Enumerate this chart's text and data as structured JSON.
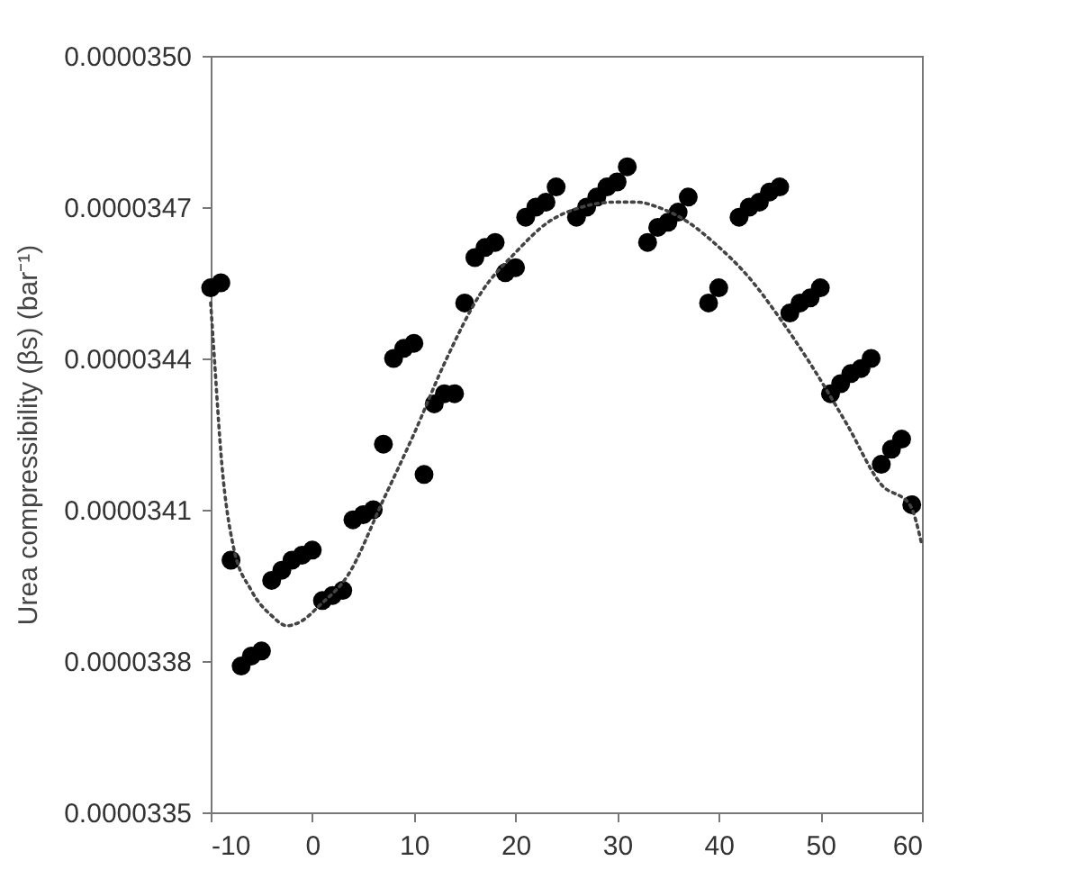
{
  "chart_data": {
    "type": "scatter",
    "ylabel": "Urea compressibility (βs)  (bar⁻¹)",
    "xlim": [
      -10,
      60
    ],
    "xticks": [
      -10,
      0,
      10,
      20,
      30,
      40,
      50,
      60
    ],
    "ylim": [
      3.35e-05,
      3.5e-05
    ],
    "yticks": [
      {
        "value": 3.35e-05,
        "label": "0.0000335"
      },
      {
        "value": 3.38e-05,
        "label": "0.0000338"
      },
      {
        "value": 3.41e-05,
        "label": "0.0000341"
      },
      {
        "value": 3.44e-05,
        "label": "0.0000344"
      },
      {
        "value": 3.47e-05,
        "label": "0.0000347"
      },
      {
        "value": 3.5e-05,
        "label": "0.0000350"
      }
    ],
    "grid": false,
    "series": [
      {
        "color": "#000000",
        "marker": "circle",
        "x": [
          -10,
          -9,
          -8,
          -7,
          -6,
          -5,
          -4,
          -3,
          -2,
          -1,
          0,
          1,
          2,
          3,
          4,
          5,
          6,
          7,
          8,
          9,
          10,
          11,
          12,
          13,
          14,
          15,
          16,
          17,
          18,
          19,
          20,
          21,
          22,
          23,
          24,
          26,
          27,
          28,
          29,
          30,
          31,
          33,
          34,
          35,
          36,
          37,
          39,
          40,
          42,
          43,
          44,
          45,
          46,
          47,
          48,
          49,
          50,
          51,
          52,
          53,
          54,
          55,
          56,
          57,
          58,
          59
        ],
        "values": [
          3.454e-05,
          3.455e-05,
          3.4e-05,
          3.379e-05,
          3.381e-05,
          3.382e-05,
          3.396e-05,
          3.398e-05,
          3.4e-05,
          3.401e-05,
          3.402e-05,
          3.392e-05,
          3.393e-05,
          3.394e-05,
          3.408e-05,
          3.409e-05,
          3.41e-05,
          3.423e-05,
          3.44e-05,
          3.442e-05,
          3.443e-05,
          3.417e-05,
          3.431e-05,
          3.433e-05,
          3.433e-05,
          3.451e-05,
          3.46e-05,
          3.462e-05,
          3.463e-05,
          3.457e-05,
          3.458e-05,
          3.468e-05,
          3.47e-05,
          3.471e-05,
          3.474e-05,
          3.468e-05,
          3.47e-05,
          3.472e-05,
          3.474e-05,
          3.475e-05,
          3.478e-05,
          3.463e-05,
          3.466e-05,
          3.467e-05,
          3.469e-05,
          3.472e-05,
          3.451e-05,
          3.454e-05,
          3.468e-05,
          3.47e-05,
          3.471e-05,
          3.473e-05,
          3.474e-05,
          3.449e-05,
          3.451e-05,
          3.452e-05,
          3.454e-05,
          3.433e-05,
          3.435e-05,
          3.437e-05,
          3.438e-05,
          3.44e-05,
          3.419e-05,
          3.422e-05,
          3.424e-05,
          3.411e-05
        ]
      },
      {
        "type": "line",
        "color": "#444444",
        "line_style": "dotted",
        "marker": "none",
        "x": [
          -10,
          -9.7,
          -8.9,
          -7.8,
          -6,
          -4,
          -2.5,
          -1,
          0.7,
          3.5,
          7,
          10,
          13,
          16.6,
          20,
          23.2,
          26.5,
          29.8,
          32,
          34,
          37,
          39.5,
          43,
          46,
          49,
          52.6,
          56,
          58.8,
          60
        ],
        "values": [
          3.451e-05,
          3.442e-05,
          3.419e-05,
          3.403e-05,
          3.394e-05,
          3.389e-05,
          3.387e-05,
          3.388e-05,
          3.391e-05,
          3.397e-05,
          3.412e-05,
          3.425e-05,
          3.439e-05,
          3.453e-05,
          3.461e-05,
          3.467e-05,
          3.47e-05,
          3.471e-05,
          3.471e-05,
          3.47e-05,
          3.467e-05,
          3.463e-05,
          3.456e-05,
          3.448e-05,
          3.439e-05,
          3.427e-05,
          3.415e-05,
          3.411e-05,
          3.403e-05
        ]
      }
    ]
  }
}
